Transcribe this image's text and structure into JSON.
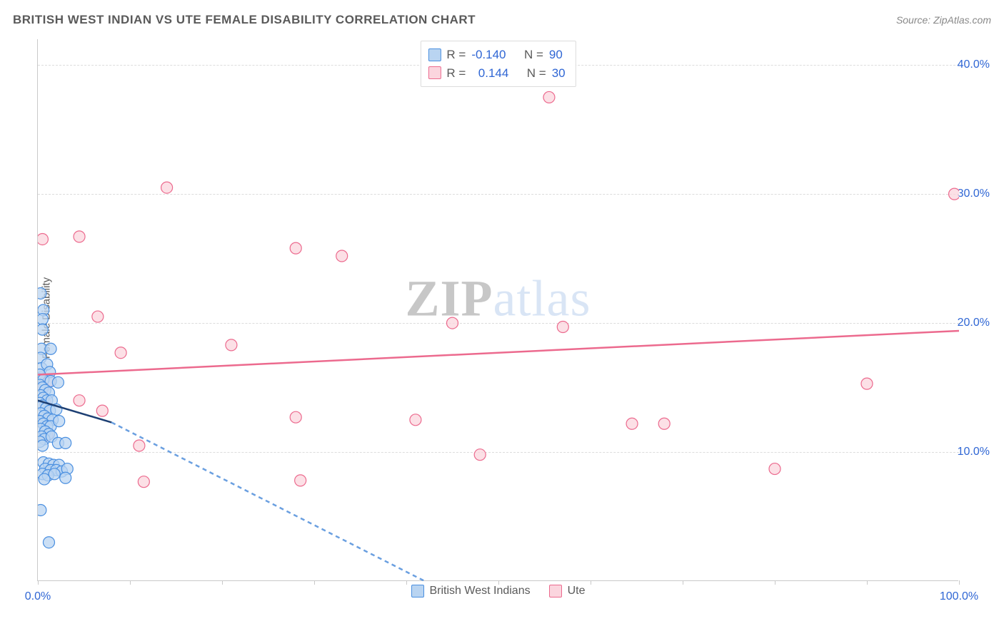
{
  "title": "BRITISH WEST INDIAN VS UTE FEMALE DISABILITY CORRELATION CHART",
  "source_label": "Source: ZipAtlas.com",
  "ylabel": "Female Disability",
  "watermark_left": "ZIP",
  "watermark_right": "atlas",
  "chart": {
    "type": "scatter",
    "background_color": "#ffffff",
    "grid_color": "#dcdcdc",
    "axis_color": "#c9c9c9",
    "xlim": [
      0,
      100
    ],
    "ylim": [
      0,
      42
    ],
    "ytick_step": 10,
    "y_ticks": [
      {
        "v": 10,
        "label": "10.0%"
      },
      {
        "v": 20,
        "label": "20.0%"
      },
      {
        "v": 30,
        "label": "30.0%"
      },
      {
        "v": 40,
        "label": "40.0%"
      }
    ],
    "x_ticks": [
      0,
      10,
      20,
      30,
      40,
      50,
      60,
      70,
      80,
      90,
      100
    ],
    "x_axis_label_left": "0.0%",
    "x_axis_label_right": "100.0%",
    "tick_label_color": "#2f66d4",
    "marker_radius": 8,
    "marker_stroke_width": 1.2,
    "line_width": 2.5,
    "dash_pattern": "6 5",
    "series": [
      {
        "name": "British West Indians",
        "fill": "#b9d4f1",
        "stroke": "#4a8fe0",
        "line_color": "#1d3f73",
        "dash_line_color": "#6a9fe0",
        "R": "-0.140",
        "N": "90",
        "regression": {
          "x1": 0,
          "y1": 14.0,
          "x2": 8,
          "y2": 12.3
        },
        "regression_dash": {
          "x1": 8,
          "y1": 12.3,
          "x2": 42,
          "y2": 0
        },
        "points": [
          {
            "x": 0.3,
            "y": 22.3
          },
          {
            "x": 0.6,
            "y": 21.0
          },
          {
            "x": 0.5,
            "y": 20.3
          },
          {
            "x": 0.5,
            "y": 19.5
          },
          {
            "x": 0.4,
            "y": 18.0
          },
          {
            "x": 1.4,
            "y": 18.0
          },
          {
            "x": 0.3,
            "y": 17.3
          },
          {
            "x": 0.4,
            "y": 16.5
          },
          {
            "x": 1.0,
            "y": 16.8
          },
          {
            "x": 1.3,
            "y": 16.2
          },
          {
            "x": 0.2,
            "y": 16.0
          },
          {
            "x": 0.6,
            "y": 15.6
          },
          {
            "x": 1.4,
            "y": 15.5
          },
          {
            "x": 2.2,
            "y": 15.4
          },
          {
            "x": 0.2,
            "y": 15.2
          },
          {
            "x": 0.5,
            "y": 15.0
          },
          {
            "x": 0.8,
            "y": 14.8
          },
          {
            "x": 1.2,
            "y": 14.6
          },
          {
            "x": 0.3,
            "y": 14.4
          },
          {
            "x": 0.6,
            "y": 14.2
          },
          {
            "x": 1.0,
            "y": 14.0
          },
          {
            "x": 1.5,
            "y": 14.0
          },
          {
            "x": 0.2,
            "y": 13.8
          },
          {
            "x": 0.5,
            "y": 13.6
          },
          {
            "x": 0.9,
            "y": 13.4
          },
          {
            "x": 1.3,
            "y": 13.2
          },
          {
            "x": 2.0,
            "y": 13.3
          },
          {
            "x": 0.3,
            "y": 13.0
          },
          {
            "x": 0.7,
            "y": 12.8
          },
          {
            "x": 1.1,
            "y": 12.6
          },
          {
            "x": 1.6,
            "y": 12.5
          },
          {
            "x": 0.2,
            "y": 12.4
          },
          {
            "x": 0.6,
            "y": 12.2
          },
          {
            "x": 1.0,
            "y": 12.0
          },
          {
            "x": 1.4,
            "y": 12.0
          },
          {
            "x": 2.3,
            "y": 12.4
          },
          {
            "x": 0.3,
            "y": 11.8
          },
          {
            "x": 0.8,
            "y": 11.6
          },
          {
            "x": 1.2,
            "y": 11.4
          },
          {
            "x": 0.4,
            "y": 11.2
          },
          {
            "x": 0.7,
            "y": 11.0
          },
          {
            "x": 1.5,
            "y": 11.2
          },
          {
            "x": 0.2,
            "y": 10.8
          },
          {
            "x": 0.5,
            "y": 10.5
          },
          {
            "x": 2.2,
            "y": 10.7
          },
          {
            "x": 3.0,
            "y": 10.7
          },
          {
            "x": 0.6,
            "y": 9.2
          },
          {
            "x": 1.2,
            "y": 9.1
          },
          {
            "x": 1.7,
            "y": 9.0
          },
          {
            "x": 2.3,
            "y": 9.0
          },
          {
            "x": 0.8,
            "y": 8.7
          },
          {
            "x": 1.4,
            "y": 8.6
          },
          {
            "x": 2.0,
            "y": 8.6
          },
          {
            "x": 2.6,
            "y": 8.5
          },
          {
            "x": 3.2,
            "y": 8.7
          },
          {
            "x": 0.5,
            "y": 8.3
          },
          {
            "x": 1.1,
            "y": 8.2
          },
          {
            "x": 1.8,
            "y": 8.3
          },
          {
            "x": 0.7,
            "y": 7.9
          },
          {
            "x": 3.0,
            "y": 8.0
          },
          {
            "x": 0.3,
            "y": 5.5
          },
          {
            "x": 1.2,
            "y": 3.0
          }
        ]
      },
      {
        "name": "Ute",
        "fill": "#fbd5de",
        "stroke": "#ec6a8e",
        "line_color": "#ec6a8e",
        "R": "0.144",
        "N": "30",
        "regression": {
          "x1": 0,
          "y1": 16.0,
          "x2": 100,
          "y2": 19.4
        },
        "points": [
          {
            "x": 55.5,
            "y": 37.5
          },
          {
            "x": 14.0,
            "y": 30.5
          },
          {
            "x": 99.5,
            "y": 30.0
          },
          {
            "x": 0.5,
            "y": 26.5
          },
          {
            "x": 4.5,
            "y": 26.7
          },
          {
            "x": 28.0,
            "y": 25.8
          },
          {
            "x": 33.0,
            "y": 25.2
          },
          {
            "x": 6.5,
            "y": 20.5
          },
          {
            "x": 45.0,
            "y": 20.0
          },
          {
            "x": 57.0,
            "y": 19.7
          },
          {
            "x": 9.0,
            "y": 17.7
          },
          {
            "x": 21.0,
            "y": 18.3
          },
          {
            "x": 0.4,
            "y": 15.8
          },
          {
            "x": 1.2,
            "y": 15.5
          },
          {
            "x": 0.6,
            "y": 15.0
          },
          {
            "x": 90.0,
            "y": 15.3
          },
          {
            "x": 4.5,
            "y": 14.0
          },
          {
            "x": 0.8,
            "y": 13.8
          },
          {
            "x": 7.0,
            "y": 13.2
          },
          {
            "x": 28.0,
            "y": 12.7
          },
          {
            "x": 41.0,
            "y": 12.5
          },
          {
            "x": 64.5,
            "y": 12.2
          },
          {
            "x": 68.0,
            "y": 12.2
          },
          {
            "x": 1.0,
            "y": 11.3
          },
          {
            "x": 11.0,
            "y": 10.5
          },
          {
            "x": 48.0,
            "y": 9.8
          },
          {
            "x": 80.0,
            "y": 8.7
          },
          {
            "x": 11.5,
            "y": 7.7
          },
          {
            "x": 28.5,
            "y": 7.8
          }
        ]
      }
    ]
  },
  "legend_top": {
    "R_label": "R =",
    "N_label": "N =",
    "label_color": "#5a5a5a",
    "value_color": "#2f66d4"
  },
  "legend_bottom_labels": [
    "British West Indians",
    "Ute"
  ],
  "watermark_color_bold": "#c7c7c7",
  "watermark_color_light": "#d9e5f5"
}
